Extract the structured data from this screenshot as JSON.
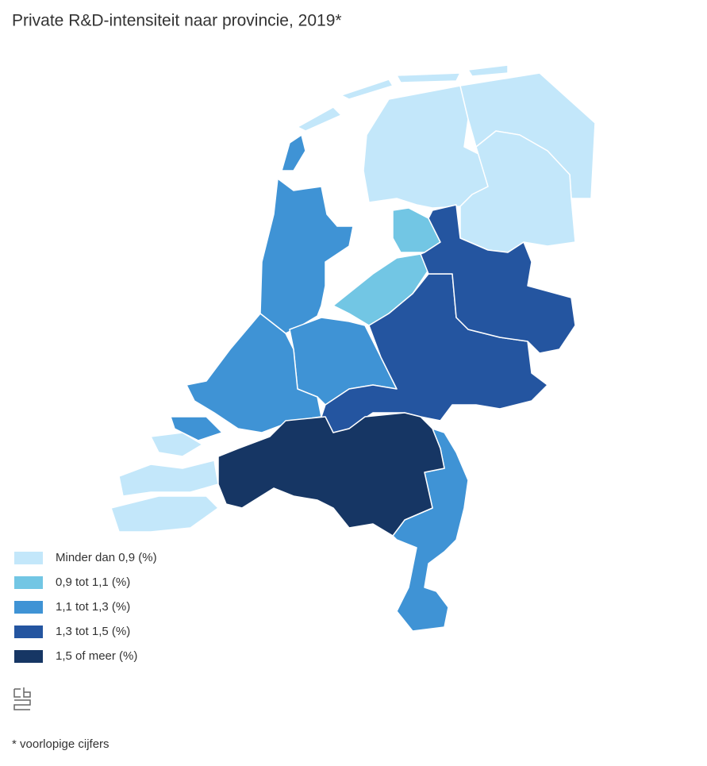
{
  "title": "Private R&D-intensiteit naar provincie, 2019*",
  "legend": {
    "items": [
      {
        "label": "Minder dan 0,9 (%)",
        "color": "#c3e7fa"
      },
      {
        "label": "0,9 tot 1,1 (%)",
        "color": "#72c6e4"
      },
      {
        "label": "1,1 tot 1,3 (%)",
        "color": "#3f93d5"
      },
      {
        "label": "1,3 tot 1,5 (%)",
        "color": "#2455a0"
      },
      {
        "label": "1,5 of meer (%)",
        "color": "#163664"
      }
    ]
  },
  "footnote": "* voorlopige cijfers"
}
